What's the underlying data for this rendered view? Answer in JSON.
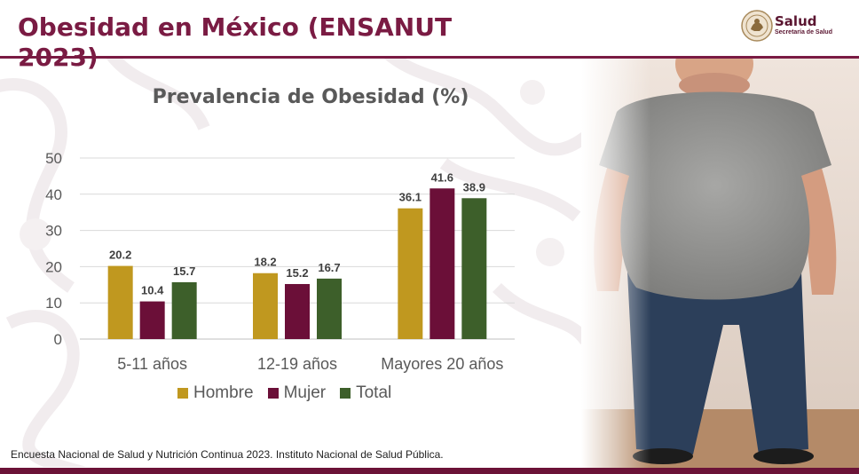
{
  "slide": {
    "title": "Obesidad en México (ENSANUT 2023)",
    "source": "Encuesta Nacional de Salud y Nutrición Continua 2023. Instituto Nacional de Salud Pública."
  },
  "logo": {
    "name": "Salud",
    "subtitle": "Secretaría de Salud",
    "icon": "government-seal-icon"
  },
  "photo": {
    "icon": "person-photo-icon"
  },
  "colors": {
    "accent": "#7a1b43",
    "hombre": "#c0981f",
    "mujer": "#6b0f38",
    "total": "#3d5f2a"
  },
  "chart_data": {
    "type": "bar",
    "title": "Prevalencia de Obesidad (%)",
    "xlabel": "",
    "ylabel": "",
    "categories": [
      "5-11 años",
      "12-19 años",
      "Mayores 20 años"
    ],
    "series": [
      {
        "name": "Hombre",
        "values": [
          20.2,
          18.2,
          36.1
        ]
      },
      {
        "name": "Mujer",
        "values": [
          10.4,
          15.2,
          41.6
        ]
      },
      {
        "name": "Total",
        "values": [
          15.7,
          16.7,
          38.9
        ]
      }
    ],
    "ylim": [
      0,
      50
    ],
    "yticks": [
      0,
      10,
      20,
      30,
      40,
      50
    ],
    "grid": true,
    "legend_position": "bottom"
  }
}
